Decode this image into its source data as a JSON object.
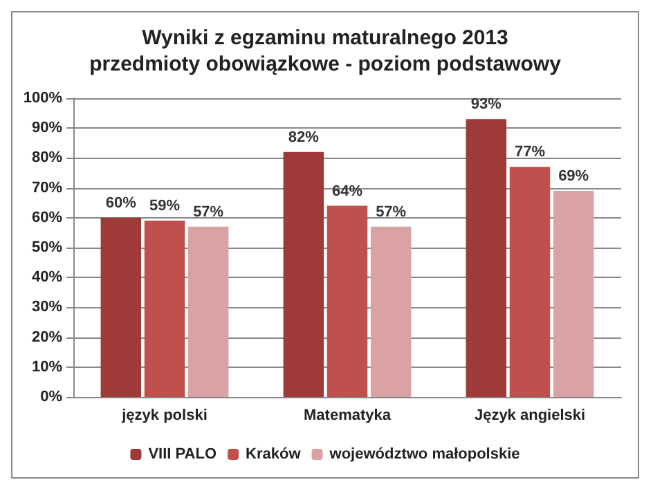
{
  "chart_data": {
    "type": "bar",
    "title": "Wyniki z egzaminu maturalnego 2013",
    "subtitle": "przedmioty obowiązkowe - poziom podstawowy",
    "categories": [
      "język polski",
      "Matematyka",
      "Język angielski"
    ],
    "series": [
      {
        "name": "VIII PALO",
        "color": "#9e3a38",
        "values": [
          60,
          82,
          93
        ],
        "value_labels": [
          "60%",
          "82%",
          "93%"
        ]
      },
      {
        "name": "Kraków",
        "color": "#c0504d",
        "values": [
          59,
          64,
          77
        ],
        "value_labels": [
          "59%",
          "64%",
          "77%"
        ]
      },
      {
        "name": "województwo małopolskie",
        "color": "#d9a3a5",
        "values": [
          57,
          57,
          69
        ],
        "value_labels": [
          "57%",
          "57%",
          "69%"
        ]
      }
    ],
    "ylim": [
      0,
      100
    ],
    "yticks": [
      {
        "value": 0,
        "label": "0%"
      },
      {
        "value": 10,
        "label": "10%"
      },
      {
        "value": 20,
        "label": "20%"
      },
      {
        "value": 30,
        "label": "30%"
      },
      {
        "value": 40,
        "label": "40%"
      },
      {
        "value": 50,
        "label": "50%"
      },
      {
        "value": 60,
        "label": "60%"
      },
      {
        "value": 70,
        "label": "70%"
      },
      {
        "value": 80,
        "label": "80%"
      },
      {
        "value": 90,
        "label": "90%"
      },
      {
        "value": 100,
        "label": "100%"
      }
    ],
    "grid": "y",
    "legend": "bottom"
  }
}
